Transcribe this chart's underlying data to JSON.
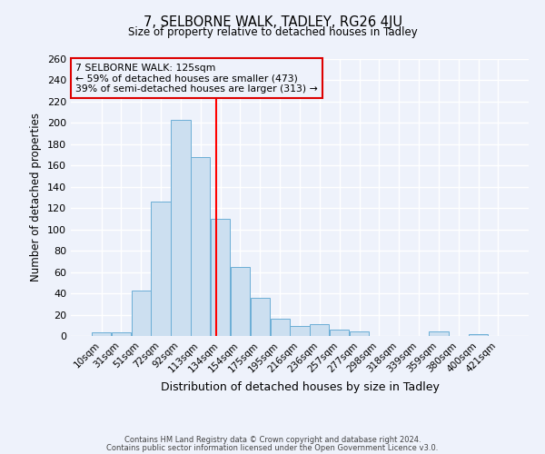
{
  "title": "7, SELBORNE WALK, TADLEY, RG26 4JU",
  "subtitle": "Size of property relative to detached houses in Tadley",
  "xlabel": "Distribution of detached houses by size in Tadley",
  "ylabel": "Number of detached properties",
  "categories": [
    "10sqm",
    "31sqm",
    "51sqm",
    "72sqm",
    "92sqm",
    "113sqm",
    "134sqm",
    "154sqm",
    "175sqm",
    "195sqm",
    "216sqm",
    "236sqm",
    "257sqm",
    "277sqm",
    "298sqm",
    "318sqm",
    "339sqm",
    "359sqm",
    "380sqm",
    "400sqm",
    "421sqm"
  ],
  "values": [
    3,
    3,
    43,
    126,
    203,
    168,
    110,
    65,
    36,
    16,
    9,
    11,
    6,
    4,
    0,
    0,
    0,
    4,
    0,
    2,
    0
  ],
  "bar_color": "#ccdff0",
  "bar_edge_color": "#6baed6",
  "ylim": [
    0,
    260
  ],
  "yticks": [
    0,
    20,
    40,
    60,
    80,
    100,
    120,
    140,
    160,
    180,
    200,
    220,
    240,
    260
  ],
  "red_line_x": 5.77,
  "annotation_title": "7 SELBORNE WALK: 125sqm",
  "annotation_line1": "← 59% of detached houses are smaller (473)",
  "annotation_line2": "39% of semi-detached houses are larger (313) →",
  "annotation_box_color": "#dd0000",
  "footer_line1": "Contains HM Land Registry data © Crown copyright and database right 2024.",
  "footer_line2": "Contains public sector information licensed under the Open Government Licence v3.0.",
  "background_color": "#eef2fb",
  "grid_color": "#ffffff"
}
